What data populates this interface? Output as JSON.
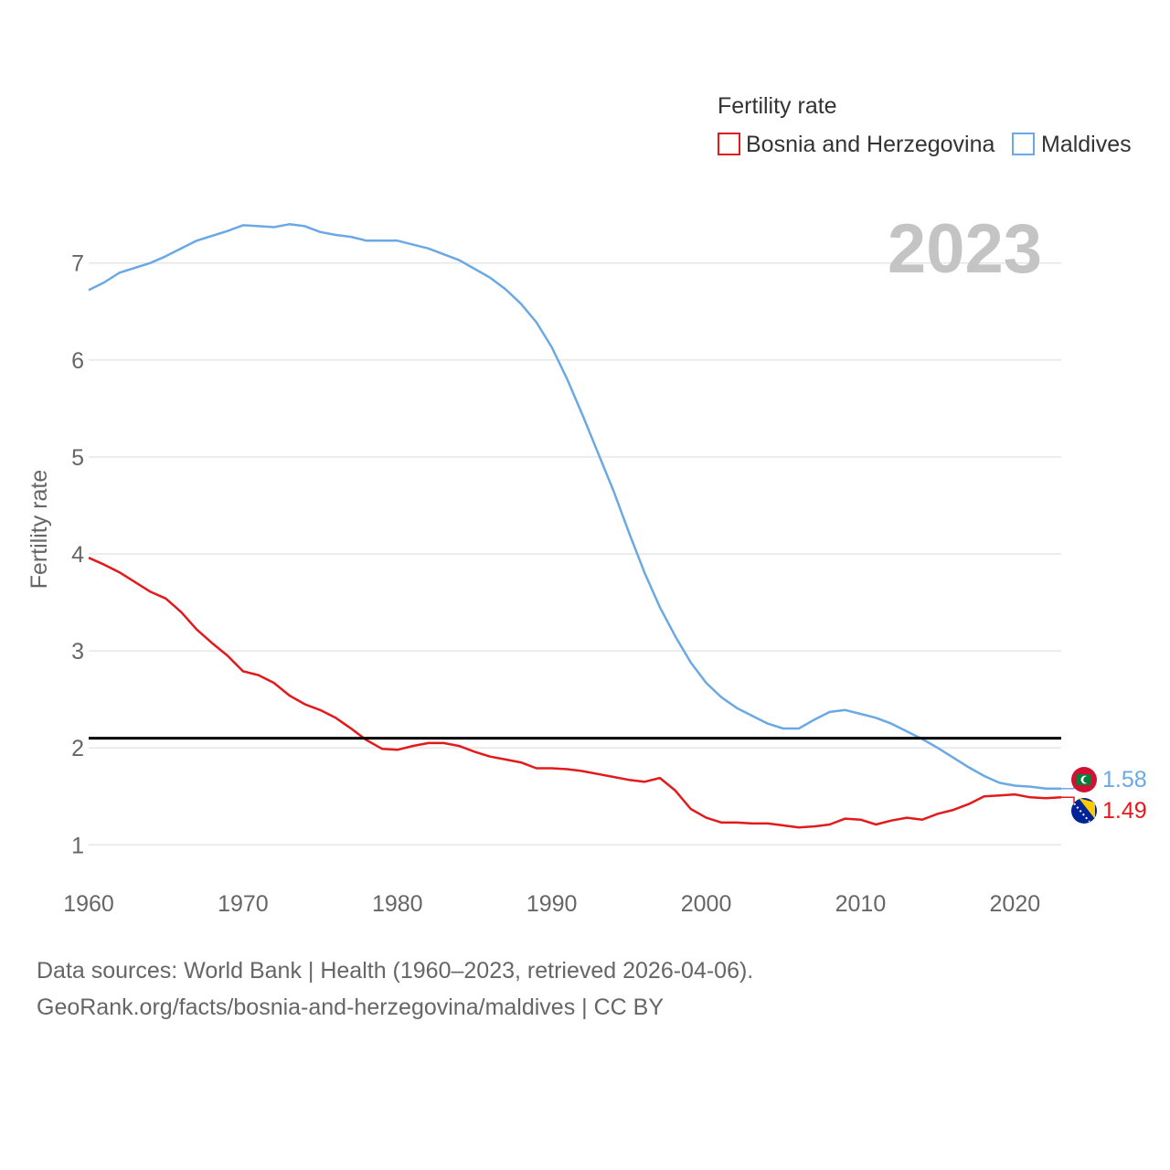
{
  "chart_data": {
    "type": "line",
    "title": "",
    "legend_title": "Fertility rate",
    "legend_position": "top-right",
    "year_label": "2023",
    "ylabel": "Fertility rate",
    "xlabel": "",
    "xlim": [
      1960,
      2023
    ],
    "ylim": [
      0.55,
      7.45
    ],
    "yticks": [
      1,
      2,
      3,
      4,
      5,
      6,
      7
    ],
    "xticks": [
      1960,
      1970,
      1980,
      1990,
      2000,
      2010,
      2020
    ],
    "grid": true,
    "reference_line": 2.1,
    "x": [
      1960,
      1961,
      1962,
      1963,
      1964,
      1965,
      1966,
      1967,
      1968,
      1969,
      1970,
      1971,
      1972,
      1973,
      1974,
      1975,
      1976,
      1977,
      1978,
      1979,
      1980,
      1981,
      1982,
      1983,
      1984,
      1985,
      1986,
      1987,
      1988,
      1989,
      1990,
      1991,
      1992,
      1993,
      1994,
      1995,
      1996,
      1997,
      1998,
      1999,
      2000,
      2001,
      2002,
      2003,
      2004,
      2005,
      2006,
      2007,
      2008,
      2009,
      2010,
      2011,
      2012,
      2013,
      2014,
      2015,
      2016,
      2017,
      2018,
      2019,
      2020,
      2021,
      2022,
      2023
    ],
    "series": [
      {
        "name": "Bosnia and Herzegovina",
        "color": "#e31a1c",
        "end_label": "1.49",
        "values": [
          3.96,
          3.89,
          3.81,
          3.71,
          3.61,
          3.54,
          3.4,
          3.22,
          3.08,
          2.95,
          2.79,
          2.75,
          2.67,
          2.54,
          2.45,
          2.39,
          2.31,
          2.2,
          2.08,
          1.99,
          1.98,
          2.02,
          2.05,
          2.05,
          2.02,
          1.96,
          1.91,
          1.88,
          1.85,
          1.79,
          1.79,
          1.78,
          1.76,
          1.73,
          1.7,
          1.67,
          1.65,
          1.69,
          1.56,
          1.37,
          1.28,
          1.23,
          1.23,
          1.22,
          1.22,
          1.2,
          1.18,
          1.19,
          1.21,
          1.27,
          1.26,
          1.21,
          1.25,
          1.28,
          1.26,
          1.32,
          1.36,
          1.42,
          1.5,
          1.51,
          1.52,
          1.49,
          1.48,
          1.49
        ]
      },
      {
        "name": "Maldives",
        "color": "#6aa9e4",
        "end_label": "1.58",
        "values": [
          6.72,
          6.8,
          6.9,
          6.95,
          7.0,
          7.07,
          7.15,
          7.23,
          7.28,
          7.33,
          7.39,
          7.38,
          7.37,
          7.4,
          7.38,
          7.32,
          7.29,
          7.27,
          7.23,
          7.23,
          7.23,
          7.19,
          7.15,
          7.09,
          7.03,
          6.94,
          6.85,
          6.73,
          6.58,
          6.39,
          6.13,
          5.8,
          5.43,
          5.04,
          4.65,
          4.22,
          3.81,
          3.45,
          3.15,
          2.88,
          2.67,
          2.52,
          2.41,
          2.33,
          2.25,
          2.2,
          2.2,
          2.29,
          2.37,
          2.39,
          2.35,
          2.31,
          2.25,
          2.17,
          2.09,
          2.0,
          1.9,
          1.8,
          1.71,
          1.64,
          1.61,
          1.6,
          1.58,
          1.58
        ]
      }
    ]
  },
  "footer": {
    "line1": "Data sources: World Bank | Health (1960–2023, retrieved 2026-04-06).",
    "line2": "GeoRank.org/facts/bosnia-and-herzegovina/maldives | CC BY"
  }
}
